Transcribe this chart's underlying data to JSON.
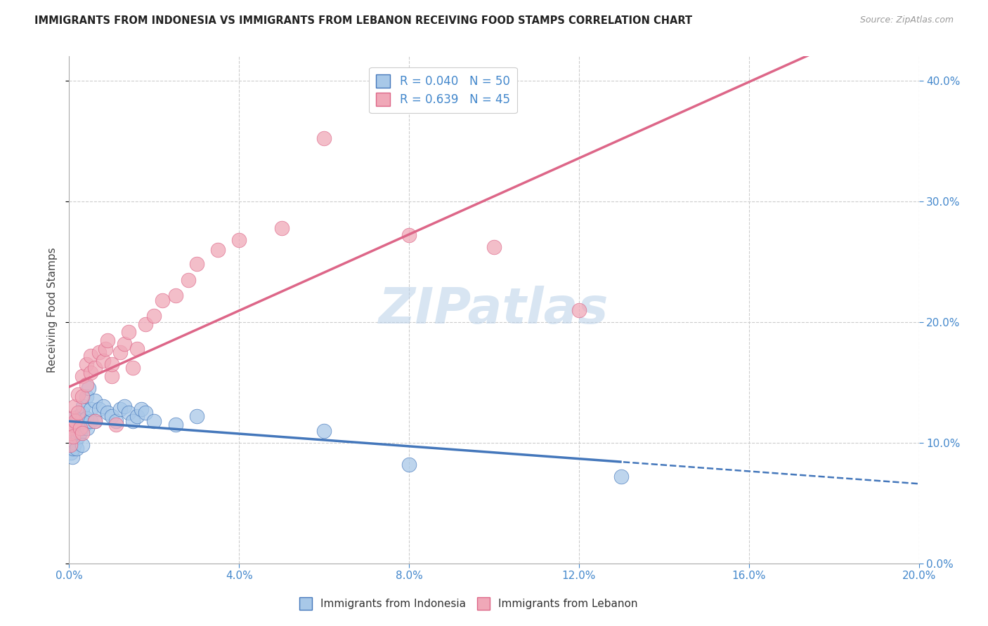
{
  "title": "IMMIGRANTS FROM INDONESIA VS IMMIGRANTS FROM LEBANON RECEIVING FOOD STAMPS CORRELATION CHART",
  "source": "Source: ZipAtlas.com",
  "ylabel": "Receiving Food Stamps",
  "watermark": "ZIPatlas",
  "legend_r1": "R = 0.040",
  "legend_n1": "N = 50",
  "legend_r2": "R = 0.639",
  "legend_n2": "N = 45",
  "color_indonesia": "#a8c8e8",
  "color_lebanon": "#f0a8b8",
  "line_color_indonesia": "#4477bb",
  "line_color_lebanon": "#dd6688",
  "grid_color": "#cccccc",
  "background_color": "#ffffff",
  "xlim": [
    0.0,
    0.2
  ],
  "ylim": [
    0.0,
    0.42
  ],
  "indonesia_x": [
    0.0002,
    0.0003,
    0.0004,
    0.0005,
    0.0006,
    0.0007,
    0.0008,
    0.0009,
    0.001,
    0.0012,
    0.0014,
    0.0015,
    0.0016,
    0.0018,
    0.002,
    0.002,
    0.0022,
    0.0025,
    0.0028,
    0.003,
    0.003,
    0.003,
    0.0032,
    0.0035,
    0.004,
    0.004,
    0.0042,
    0.0045,
    0.005,
    0.005,
    0.006,
    0.006,
    0.007,
    0.008,
    0.009,
    0.01,
    0.011,
    0.012,
    0.013,
    0.014,
    0.015,
    0.016,
    0.017,
    0.018,
    0.02,
    0.025,
    0.03,
    0.06,
    0.08,
    0.13
  ],
  "indonesia_y": [
    0.098,
    0.105,
    0.092,
    0.11,
    0.103,
    0.115,
    0.088,
    0.12,
    0.095,
    0.108,
    0.112,
    0.1,
    0.118,
    0.095,
    0.115,
    0.105,
    0.122,
    0.108,
    0.118,
    0.112,
    0.125,
    0.098,
    0.13,
    0.115,
    0.12,
    0.138,
    0.112,
    0.145,
    0.118,
    0.128,
    0.135,
    0.118,
    0.128,
    0.13,
    0.125,
    0.122,
    0.118,
    0.128,
    0.13,
    0.125,
    0.118,
    0.122,
    0.128,
    0.125,
    0.118,
    0.115,
    0.122,
    0.11,
    0.082,
    0.072
  ],
  "lebanon_x": [
    0.0002,
    0.0003,
    0.0005,
    0.0007,
    0.001,
    0.001,
    0.0012,
    0.0015,
    0.002,
    0.002,
    0.0025,
    0.003,
    0.003,
    0.003,
    0.004,
    0.004,
    0.005,
    0.005,
    0.006,
    0.006,
    0.007,
    0.008,
    0.0085,
    0.009,
    0.01,
    0.01,
    0.011,
    0.012,
    0.013,
    0.014,
    0.015,
    0.016,
    0.018,
    0.02,
    0.022,
    0.025,
    0.028,
    0.03,
    0.035,
    0.04,
    0.05,
    0.06,
    0.08,
    0.1,
    0.12
  ],
  "lebanon_y": [
    0.098,
    0.112,
    0.108,
    0.12,
    0.115,
    0.105,
    0.13,
    0.118,
    0.125,
    0.14,
    0.112,
    0.155,
    0.108,
    0.138,
    0.165,
    0.148,
    0.158,
    0.172,
    0.162,
    0.118,
    0.175,
    0.168,
    0.178,
    0.185,
    0.155,
    0.165,
    0.115,
    0.175,
    0.182,
    0.192,
    0.162,
    0.178,
    0.198,
    0.205,
    0.218,
    0.222,
    0.235,
    0.248,
    0.26,
    0.268,
    0.278,
    0.352,
    0.272,
    0.262,
    0.21
  ]
}
